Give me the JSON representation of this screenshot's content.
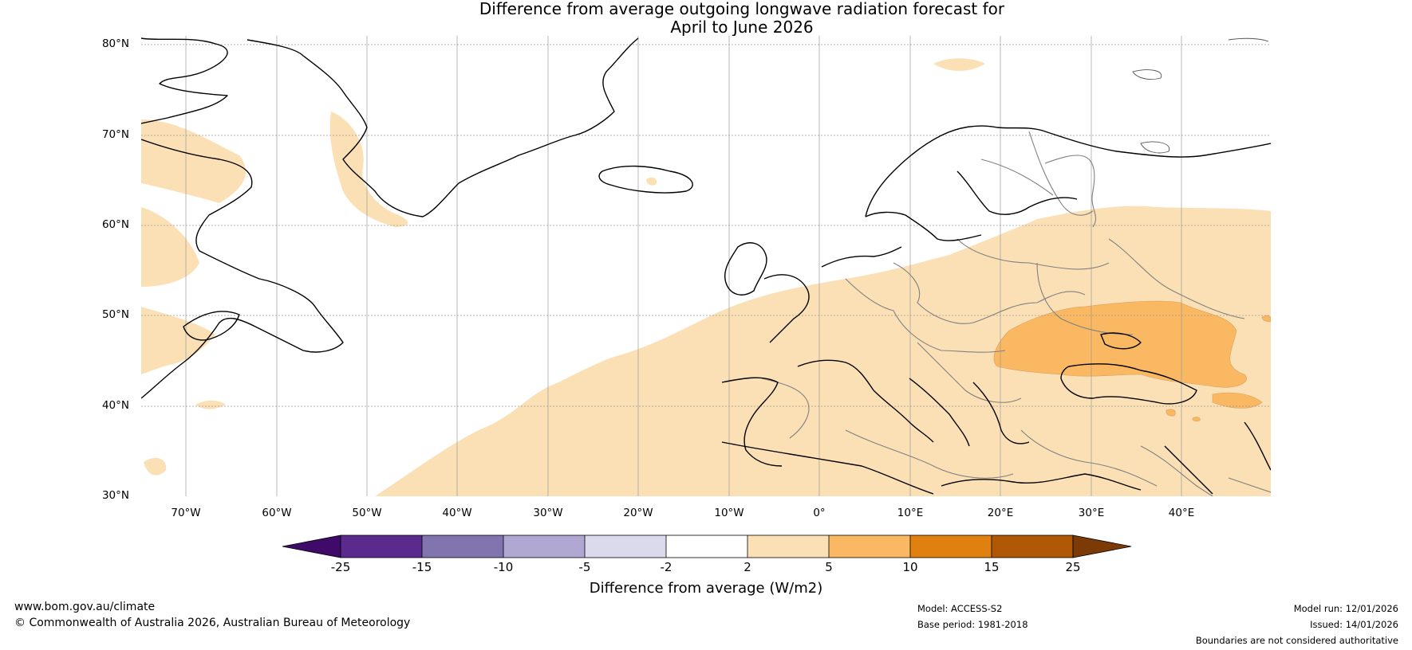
{
  "title": {
    "line1": "Difference from average outgoing longwave radiation forecast for",
    "line2": "April to June 2026"
  },
  "map": {
    "region": "North Atlantic and Europe",
    "lat_labels": [
      "80°N",
      "70°N",
      "60°N",
      "50°N",
      "40°N",
      "30°N"
    ],
    "lon_labels": [
      "70°W",
      "60°W",
      "50°W",
      "40°W",
      "30°W",
      "20°W",
      "10°W",
      "0°",
      "10°E",
      "20°E",
      "30°E",
      "40°E"
    ],
    "extent": {
      "lon": [
        -75,
        50
      ],
      "lat": [
        30,
        81
      ]
    },
    "gridlines": true
  },
  "colorbar": {
    "label": "Difference from average (W/m2)",
    "ticks": [
      "-25",
      "-15",
      "-10",
      "-5",
      "-2",
      "2",
      "5",
      "10",
      "15",
      "25"
    ],
    "colors": [
      "#3f0a68",
      "#5a2a8c",
      "#8174af",
      "#b0a8d3",
      "#dbd9ec",
      "#ffffff",
      "#fce0b5",
      "#f9b861",
      "#e0810f",
      "#b05806",
      "#7c3b06"
    ]
  },
  "footer": {
    "website": "www.bom.gov.au/climate",
    "copyright": "© Commonwealth of Australia 2026, Australian Bureau of Meteorology",
    "model": "Model: ACCESS-S2",
    "base_period": "Base period: 1981-2018",
    "model_run": "Model run: 12/01/2026",
    "issued": "Issued: 14/01/2026",
    "disclaimer": "Boundaries are not considered authoritative"
  }
}
